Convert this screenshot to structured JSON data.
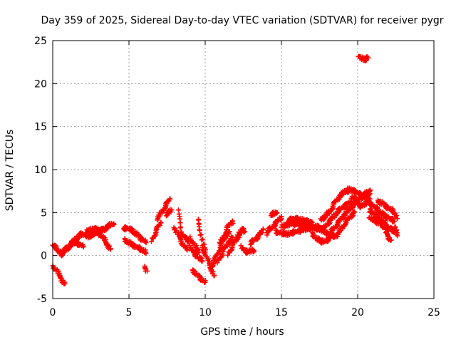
{
  "chart_data": {
    "type": "scatter",
    "title": "Day 359 of 2025, Sidereal Day-to-day VTEC variation (SDTVAR) for receiver pygr",
    "xlabel": "GPS time / hours",
    "ylabel": "SDTVAR / TECUs",
    "xlim": [
      0,
      25
    ],
    "ylim": [
      -5,
      25
    ],
    "x_ticks": [
      "0",
      "5",
      "10",
      "15",
      "20",
      "25"
    ],
    "y_ticks": [
      "-5",
      "0",
      "5",
      "10",
      "15",
      "20",
      "25"
    ],
    "grid": true,
    "marker": "plus",
    "color": "#ff0000",
    "series": [
      {
        "name": "sdtvar",
        "tracks": [
          [
            [
              0.0,
              1.2
            ],
            [
              0.2,
              0.9
            ],
            [
              0.4,
              0.5
            ],
            [
              0.6,
              0.2
            ],
            [
              0.8,
              0.6
            ],
            [
              1.0,
              1.0
            ],
            [
              1.3,
              1.6
            ],
            [
              1.6,
              2.1
            ],
            [
              1.9,
              2.5
            ],
            [
              2.2,
              2.3
            ]
          ],
          [
            [
              0.0,
              -1.3
            ],
            [
              0.2,
              -1.6
            ],
            [
              0.4,
              -2.2
            ],
            [
              0.6,
              -2.8
            ],
            [
              0.8,
              -3.3
            ]
          ],
          [
            [
              0.5,
              0.0
            ],
            [
              0.8,
              0.6
            ],
            [
              1.1,
              1.1
            ],
            [
              1.4,
              1.5
            ],
            [
              1.8,
              1.3
            ],
            [
              2.0,
              1.1
            ]
          ],
          [
            [
              2.2,
              2.8
            ],
            [
              2.5,
              3.0
            ],
            [
              2.8,
              3.1
            ],
            [
              3.1,
              3.0
            ],
            [
              3.4,
              3.0
            ]
          ],
          [
            [
              2.3,
              2.2
            ],
            [
              2.6,
              2.4
            ],
            [
              2.9,
              2.7
            ],
            [
              3.2,
              2.9
            ],
            [
              3.5,
              3.2
            ],
            [
              3.8,
              3.6
            ],
            [
              4.0,
              3.7
            ]
          ],
          [
            [
              3.0,
              2.6
            ],
            [
              3.2,
              2.3
            ],
            [
              3.4,
              1.8
            ],
            [
              3.6,
              1.2
            ],
            [
              3.8,
              0.8
            ]
          ],
          [
            [
              4.6,
              3.1
            ],
            [
              4.9,
              3.2
            ],
            [
              5.2,
              2.9
            ],
            [
              5.5,
              2.5
            ],
            [
              5.8,
              2.0
            ],
            [
              6.1,
              1.6
            ]
          ],
          [
            [
              4.7,
              1.8
            ],
            [
              5.0,
              1.5
            ],
            [
              5.3,
              1.2
            ],
            [
              5.6,
              0.9
            ],
            [
              5.9,
              0.6
            ],
            [
              6.1,
              0.4
            ]
          ],
          [
            [
              6.0,
              -1.3
            ],
            [
              6.1,
              -1.6
            ],
            [
              6.2,
              -1.8
            ]
          ],
          [
            [
              6.5,
              1.8
            ],
            [
              6.7,
              2.5
            ],
            [
              6.9,
              3.3
            ],
            [
              7.1,
              3.8
            ]
          ],
          [
            [
              6.8,
              4.3
            ],
            [
              7.0,
              4.6
            ],
            [
              7.2,
              5.2
            ],
            [
              7.4,
              5.8
            ],
            [
              7.6,
              6.3
            ],
            [
              7.7,
              6.6
            ]
          ],
          [
            [
              7.4,
              4.8
            ],
            [
              7.6,
              5.0
            ],
            [
              7.8,
              5.3
            ]
          ],
          [
            [
              8.2,
              5.2
            ],
            [
              8.3,
              4.2
            ],
            [
              8.4,
              3.4
            ],
            [
              8.5,
              2.6
            ],
            [
              8.7,
              2.0
            ],
            [
              8.9,
              1.6
            ]
          ],
          [
            [
              8.0,
              3.2
            ],
            [
              8.2,
              2.5
            ],
            [
              8.4,
              1.8
            ],
            [
              8.6,
              1.2
            ],
            [
              8.8,
              0.7
            ]
          ],
          [
            [
              9.0,
              2.0
            ],
            [
              9.2,
              1.5
            ],
            [
              9.4,
              0.9
            ],
            [
              9.6,
              0.4
            ]
          ],
          [
            [
              9.0,
              1.0
            ],
            [
              9.2,
              0.4
            ],
            [
              9.4,
              0.0
            ],
            [
              9.6,
              -0.3
            ],
            [
              9.8,
              -0.6
            ]
          ],
          [
            [
              9.2,
              -1.7
            ],
            [
              9.4,
              -2.1
            ],
            [
              9.6,
              -2.5
            ],
            [
              9.8,
              -2.8
            ],
            [
              10.0,
              -3.1
            ]
          ],
          [
            [
              9.5,
              4.3
            ],
            [
              9.6,
              3.6
            ],
            [
              9.7,
              2.8
            ],
            [
              9.8,
              2.0
            ],
            [
              9.9,
              1.2
            ],
            [
              10.0,
              0.4
            ]
          ],
          [
            [
              9.8,
              1.0
            ],
            [
              10.0,
              0.2
            ],
            [
              10.2,
              -0.7
            ],
            [
              10.4,
              -1.6
            ],
            [
              10.6,
              -2.3
            ]
          ],
          [
            [
              10.4,
              -1.4
            ],
            [
              10.6,
              -0.6
            ],
            [
              10.8,
              0.2
            ],
            [
              11.0,
              1.0
            ],
            [
              11.2,
              1.8
            ],
            [
              11.4,
              2.4
            ],
            [
              11.6,
              2.8
            ]
          ],
          [
            [
              10.8,
              -0.8
            ],
            [
              11.0,
              -0.1
            ],
            [
              11.2,
              0.6
            ],
            [
              11.4,
              1.2
            ],
            [
              11.6,
              1.7
            ],
            [
              11.8,
              2.1
            ]
          ],
          [
            [
              11.5,
              0.2
            ],
            [
              11.7,
              0.8
            ],
            [
              11.9,
              1.5
            ],
            [
              12.1,
              2.1
            ],
            [
              12.3,
              2.6
            ]
          ],
          [
            [
              11.0,
              1.4
            ],
            [
              11.2,
              2.2
            ],
            [
              11.4,
              3.0
            ],
            [
              11.6,
              3.6
            ],
            [
              11.8,
              4.0
            ]
          ],
          [
            [
              12.0,
              1.6
            ],
            [
              12.2,
              2.4
            ],
            [
              12.4,
              3.2
            ],
            [
              12.6,
              2.8
            ]
          ],
          [
            [
              12.4,
              1.0
            ],
            [
              12.6,
              0.5
            ],
            [
              12.8,
              0.4
            ],
            [
              13.0,
              0.6
            ],
            [
              13.2,
              0.5
            ]
          ],
          [
            [
              13.0,
              1.4
            ],
            [
              13.2,
              1.8
            ],
            [
              13.4,
              2.1
            ],
            [
              13.6,
              2.5
            ],
            [
              13.8,
              3.0
            ]
          ],
          [
            [
              14.0,
              2.5
            ],
            [
              14.2,
              3.0
            ],
            [
              14.4,
              3.3
            ],
            [
              14.6,
              3.7
            ],
            [
              14.8,
              4.1
            ],
            [
              15.0,
              4.5
            ]
          ],
          [
            [
              14.3,
              4.6
            ],
            [
              14.5,
              4.9
            ],
            [
              14.7,
              5.0
            ]
          ],
          [
            [
              14.6,
              2.8
            ],
            [
              15.0,
              2.6
            ],
            [
              15.4,
              2.5
            ],
            [
              15.8,
              2.7
            ],
            [
              16.2,
              2.9
            ],
            [
              16.6,
              3.1
            ],
            [
              17.0,
              3.2
            ],
            [
              17.4,
              3.1
            ],
            [
              17.8,
              2.8
            ],
            [
              18.2,
              2.4
            ],
            [
              18.6,
              2.2
            ]
          ],
          [
            [
              15.0,
              3.4
            ],
            [
              15.4,
              3.6
            ],
            [
              15.8,
              3.7
            ],
            [
              16.2,
              3.6
            ],
            [
              16.6,
              3.5
            ],
            [
              17.0,
              3.5
            ],
            [
              17.4,
              3.3
            ],
            [
              17.8,
              3.0
            ]
          ],
          [
            [
              15.4,
              4.0
            ],
            [
              15.8,
              4.3
            ],
            [
              16.2,
              4.2
            ],
            [
              16.6,
              4.0
            ],
            [
              17.0,
              3.9
            ]
          ],
          [
            [
              17.0,
              2.5
            ],
            [
              17.3,
              2.0
            ],
            [
              17.6,
              1.6
            ],
            [
              17.9,
              1.7
            ],
            [
              18.2,
              2.0
            ]
          ],
          [
            [
              17.6,
              4.2
            ],
            [
              17.9,
              4.6
            ],
            [
              18.2,
              5.2
            ],
            [
              18.4,
              5.8
            ],
            [
              18.6,
              6.4
            ],
            [
              18.8,
              6.9
            ],
            [
              19.0,
              7.2
            ],
            [
              19.2,
              7.5
            ],
            [
              19.4,
              7.4
            ]
          ],
          [
            [
              17.8,
              3.2
            ],
            [
              18.1,
              3.9
            ],
            [
              18.4,
              4.5
            ],
            [
              18.7,
              5.1
            ],
            [
              19.0,
              5.6
            ],
            [
              19.3,
              6.0
            ],
            [
              19.6,
              6.2
            ]
          ],
          [
            [
              18.2,
              2.6
            ],
            [
              18.5,
              3.3
            ],
            [
              18.8,
              4.0
            ],
            [
              19.1,
              4.7
            ],
            [
              19.4,
              5.3
            ],
            [
              19.7,
              5.8
            ],
            [
              20.0,
              6.2
            ]
          ],
          [
            [
              18.6,
              2.3
            ],
            [
              18.9,
              3.0
            ],
            [
              19.2,
              3.8
            ],
            [
              19.5,
              4.5
            ],
            [
              19.8,
              5.1
            ]
          ],
          [
            [
              19.4,
              7.7
            ],
            [
              19.6,
              7.6
            ],
            [
              19.8,
              7.5
            ],
            [
              20.0,
              7.3
            ],
            [
              20.2,
              7.0
            ],
            [
              20.4,
              6.8
            ],
            [
              20.6,
              7.0
            ],
            [
              20.8,
              7.2
            ]
          ],
          [
            [
              19.8,
              6.4
            ],
            [
              20.0,
              6.0
            ],
            [
              20.2,
              5.7
            ],
            [
              20.4,
              5.9
            ],
            [
              20.6,
              6.3
            ],
            [
              20.8,
              6.6
            ]
          ],
          [
            [
              19.6,
              6.8
            ],
            [
              19.8,
              6.6
            ],
            [
              20.0,
              6.5
            ],
            [
              20.2,
              6.7
            ],
            [
              20.4,
              7.0
            ],
            [
              20.6,
              7.3
            ],
            [
              20.8,
              7.6
            ]
          ],
          [
            [
              20.8,
              5.3
            ],
            [
              21.0,
              5.0
            ],
            [
              21.3,
              4.6
            ],
            [
              21.6,
              4.0
            ],
            [
              21.9,
              3.5
            ],
            [
              22.2,
              3.0
            ],
            [
              22.5,
              2.7
            ]
          ],
          [
            [
              20.6,
              6.4
            ],
            [
              20.9,
              6.0
            ],
            [
              21.2,
              5.5
            ],
            [
              21.5,
              5.0
            ],
            [
              21.8,
              4.6
            ],
            [
              22.1,
              4.3
            ],
            [
              22.4,
              4.0
            ]
          ],
          [
            [
              20.8,
              4.4
            ],
            [
              21.1,
              4.1
            ],
            [
              21.4,
              3.8
            ],
            [
              21.7,
              3.4
            ],
            [
              22.0,
              3.0
            ]
          ],
          [
            [
              21.3,
              6.3
            ],
            [
              21.6,
              6.1
            ],
            [
              21.9,
              5.7
            ],
            [
              22.2,
              5.3
            ],
            [
              22.5,
              4.8
            ],
            [
              22.6,
              4.3
            ]
          ],
          [
            [
              21.8,
              2.8
            ],
            [
              22.0,
              2.2
            ],
            [
              22.2,
              1.8
            ]
          ],
          [
            [
              22.4,
              3.4
            ],
            [
              22.5,
              2.8
            ],
            [
              22.6,
              2.3
            ]
          ],
          [
            [
              20.1,
              23.2
            ],
            [
              20.3,
              22.9
            ],
            [
              20.5,
              22.7
            ],
            [
              20.6,
              22.9
            ],
            [
              20.7,
              23.0
            ]
          ]
        ]
      }
    ]
  }
}
